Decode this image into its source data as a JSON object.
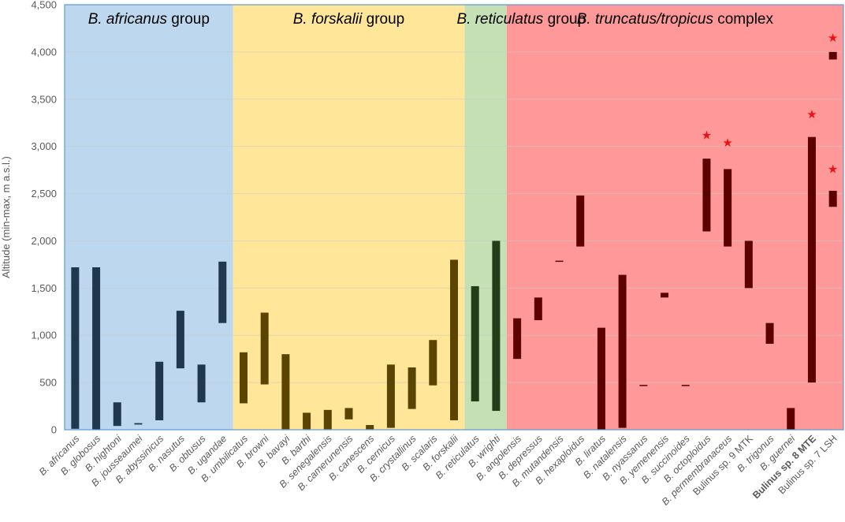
{
  "chart_data": {
    "type": "bar",
    "subtype": "floating-range",
    "ylabel": "Altitude (min-max, m a.s.l.)",
    "ylim": [
      0,
      4500
    ],
    "yticks": [
      "0",
      "500",
      "1,000",
      "1,500",
      "2,000",
      "2,500",
      "3,000",
      "3,500",
      "4,000",
      "4,500"
    ],
    "grid": true,
    "categories": [
      "B. africanus",
      "B. globosus",
      "B. hightoni",
      "B. jousseaumei",
      "B. abyssinicus",
      "B. nasutus",
      "B. obtusus",
      "B. ugandae",
      "B. umbilicatus",
      "B. browni",
      "B. bavayi",
      "B. barthi",
      "B. senegalensis",
      "B. camerunensis",
      "B. canescens",
      "B. cernicus",
      "B. crystallinus",
      "B. scalaris",
      "B. forskalii",
      "B. reticulatus",
      "B. wrighti",
      "B. angolensis",
      "B. depressus",
      "B. mutandensis",
      "B. hexaploidus",
      "B. liratus",
      "B. natalensis",
      "B. nyassanus",
      "B. yemenensis",
      "B. succinoides",
      "B. octoploidus",
      "B. permembranaceus",
      "Bulinus sp. 9 MTK",
      "B. trigonus",
      "B. guernei",
      "Bulinus sp. 8 MTE",
      "Bulinus sp. 7 LSH"
    ],
    "category_style": [
      "italic",
      "italic",
      "italic",
      "italic",
      "italic",
      "italic",
      "italic",
      "italic",
      "italic",
      "italic",
      "italic",
      "italic",
      "italic",
      "italic",
      "italic",
      "italic",
      "italic",
      "italic",
      "italic",
      "italic",
      "italic",
      "italic",
      "italic",
      "italic",
      "italic",
      "italic",
      "italic",
      "italic",
      "italic",
      "italic",
      "italic",
      "italic",
      "plain",
      "italic",
      "italic",
      "bold",
      "plain"
    ],
    "min": [
      10,
      0,
      40,
      55,
      100,
      650,
      290,
      1130,
      280,
      480,
      5,
      5,
      5,
      110,
      5,
      20,
      220,
      470,
      100,
      300,
      200,
      750,
      1160,
      1780,
      1940,
      0,
      20,
      465,
      1400,
      470,
      2100,
      1940,
      1500,
      910,
      0,
      500,
      2360
    ],
    "max": [
      1720,
      1720,
      290,
      70,
      720,
      1260,
      690,
      1780,
      820,
      1240,
      800,
      180,
      210,
      230,
      50,
      690,
      660,
      950,
      1800,
      1520,
      2000,
      1180,
      1400,
      1790,
      2480,
      1080,
      1640,
      475,
      1450,
      475,
      2870,
      2760,
      2000,
      1130,
      230,
      3100,
      2530
    ],
    "starred": [
      "B. octoploidus",
      "B. permembranaceus",
      "Bulinus sp. 8 MTE",
      "Bulinus sp. 7 LSH",
      "Bulinus sp. 7 LSH (upper)"
    ],
    "extra_ranges": [
      {
        "category": "Bulinus sp. 7 LSH",
        "min": 3920,
        "max": 4000,
        "starred": true
      }
    ],
    "star_marks": [
      {
        "category": "B. octoploidus",
        "y": 3120
      },
      {
        "category": "B. permembranaceus",
        "y": 3040
      },
      {
        "category": "Bulinus sp. 8 MTE",
        "y": 3340
      },
      {
        "category": "Bulinus sp. 7 LSH",
        "y": 2760
      },
      {
        "category": "Bulinus sp. 7 LSH",
        "y": 4150
      }
    ],
    "groups": [
      {
        "name_italic": "B. africanus",
        "name_rest": " group",
        "start": 0,
        "end": 7,
        "color": "#bdd7ee",
        "bar_color": "#1f3850"
      },
      {
        "name_italic": "B. forskalii",
        "name_rest": " group",
        "start": 8,
        "end": 18,
        "color": "#ffe699",
        "bar_color": "#5a4400"
      },
      {
        "name_italic": "B. reticulatus",
        "name_rest": " group",
        "start": 19,
        "end": 20,
        "color": "#c5e0b4",
        "bar_color": "#233d18"
      },
      {
        "name_italic": "B. truncatus/tropicus",
        "name_rest": " complex",
        "start": 21,
        "end": 36,
        "color": "#ff9999",
        "bar_color": "#5c0000"
      }
    ],
    "star_symbol": "★",
    "star_color": "#ee1111",
    "border_color": "#5b9bd5"
  }
}
